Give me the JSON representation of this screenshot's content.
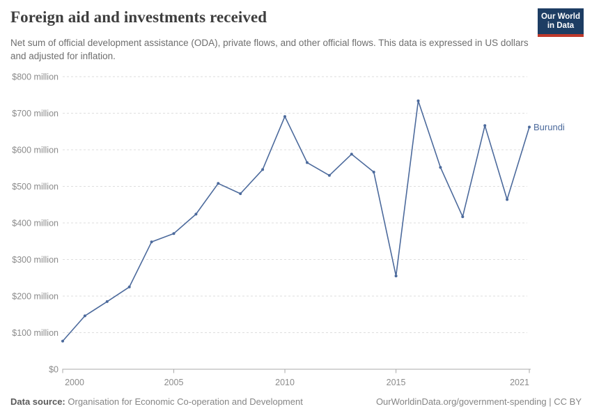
{
  "header": {
    "title": "Foreign aid and investments received",
    "subtitle": "Net sum of official development assistance (ODA), private flows, and other official flows. This data is expressed in US dollars and adjusted for inflation.",
    "logo": {
      "line1": "Our World",
      "line2": "in Data"
    }
  },
  "chart_data": {
    "type": "line",
    "title": "Foreign aid and investments received",
    "xlabel": "",
    "ylabel": "",
    "x": [
      2000,
      2001,
      2002,
      2003,
      2004,
      2005,
      2006,
      2007,
      2008,
      2009,
      2010,
      2011,
      2012,
      2013,
      2014,
      2015,
      2016,
      2017,
      2018,
      2019,
      2020,
      2021
    ],
    "series": [
      {
        "name": "Burundi",
        "color": "#4C6A9C",
        "values": [
          77,
          146,
          185,
          225,
          348,
          371,
          424,
          508,
          480,
          546,
          691,
          565,
          530,
          588,
          539,
          255,
          734,
          552,
          417,
          666,
          464,
          662
        ]
      }
    ],
    "unit": "US$ million",
    "xlim": [
      2000,
      2021
    ],
    "ylim": [
      0,
      800
    ],
    "x_ticks": [
      2000,
      2005,
      2010,
      2015,
      2021
    ],
    "y_ticks": [
      0,
      100,
      200,
      300,
      400,
      500,
      600,
      700,
      800
    ],
    "y_tick_labels": [
      "$0",
      "$100 million",
      "$200 million",
      "$300 million",
      "$400 million",
      "$500 million",
      "$600 million",
      "$700 million",
      "$800 million"
    ],
    "grid": "horizontal-dashed",
    "legend": "end-of-line-label"
  },
  "footer": {
    "source_label": "Data source:",
    "source_value": "Organisation for Economic Co-operation and Development",
    "link": "OurWorldinData.org/government-spending | CC BY"
  },
  "colors": {
    "line": "#4C6A9C",
    "grid": "#dedede",
    "axis": "#a8a8a8",
    "tick_label": "#8b8b8b",
    "title": "#3e3e3e",
    "subtitle": "#6e6e6e",
    "logo_bg": "#1d3d63",
    "logo_accent": "#c0392b"
  }
}
